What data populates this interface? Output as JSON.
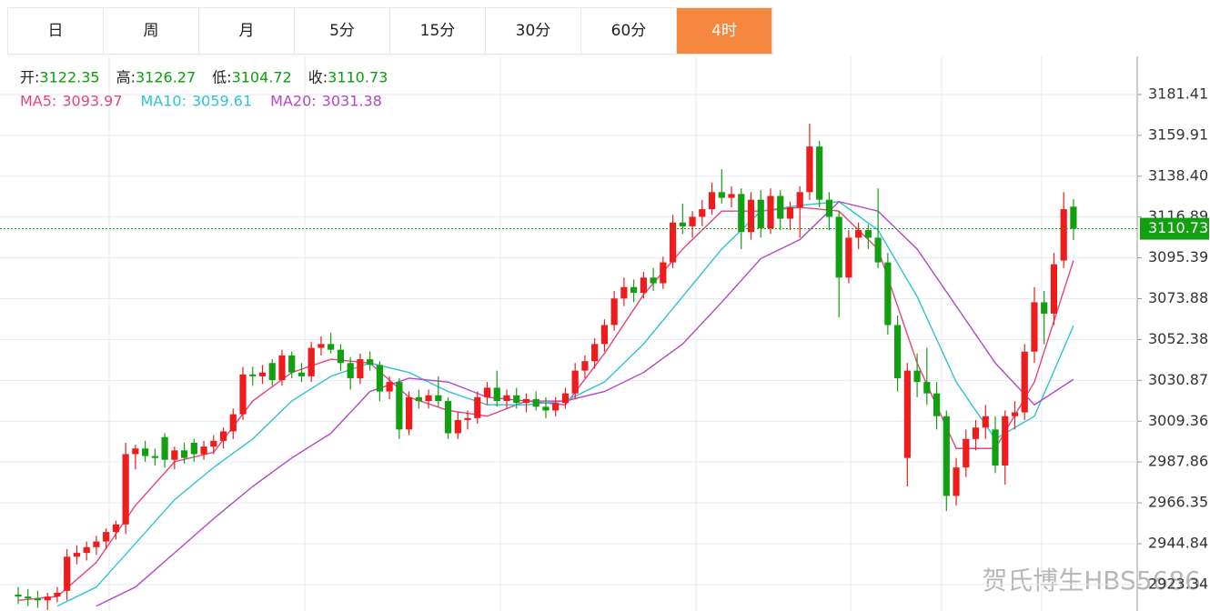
{
  "tabs": [
    "日",
    "周",
    "月",
    "5分",
    "15分",
    "30分",
    "60分",
    "4时"
  ],
  "active_tab": 7,
  "watermark": "贺氏博生HBS5686",
  "chart_data": {
    "type": "candlestick",
    "ohlc_labels": [
      "开:",
      "高:",
      "低:",
      "收:"
    ],
    "up_color": "#ee1c1c",
    "down_color": "#12a012",
    "ylim": [
      2909.4,
      3201.5
    ],
    "yticks": [
      3181.41,
      3159.91,
      {
        "value": 3138.4,
        "label": "3138.40"
      },
      3116.89,
      3095.39,
      3073.88,
      3052.38,
      3030.87,
      3009.36,
      2987.86,
      2966.35,
      2944.84,
      2923.34
    ],
    "grid": true,
    "ohlc": [
      [
        2918,
        2922,
        2913,
        2917
      ],
      [
        2917,
        2921,
        2912,
        2916
      ],
      [
        2916,
        2920,
        2911,
        2915
      ],
      [
        2915,
        2919,
        2910,
        2917
      ],
      [
        2917,
        2922,
        2914,
        2919
      ],
      [
        2920,
        2942,
        2915,
        2938
      ],
      [
        2938,
        2944,
        2934,
        2940
      ],
      [
        2940,
        2946,
        2936,
        2943
      ],
      [
        2943,
        2949,
        2939,
        2946
      ],
      [
        2946,
        2953,
        2942,
        2951
      ],
      [
        2951,
        2957,
        2947,
        2955
      ],
      [
        2955,
        2998,
        2950,
        2992
      ],
      [
        2992,
        2997,
        2984,
        2995
      ],
      [
        2995,
        2999,
        2988,
        2991
      ],
      [
        2991,
        2995,
        2986,
        2990
      ],
      [
        3001,
        3003,
        2985,
        2989
      ],
      [
        2989,
        2996,
        2984,
        2994
      ],
      [
        2994,
        2998,
        2987,
        2990
      ],
      [
        2998,
        3000,
        2988,
        2992
      ],
      [
        2992,
        2999,
        2989,
        2996
      ],
      [
        2996,
        3002,
        2992,
        2999
      ],
      [
        2999,
        3006,
        2995,
        3004
      ],
      [
        3004,
        3016,
        3000,
        3013
      ],
      [
        3013,
        3038,
        3010,
        3034
      ],
      [
        3034,
        3038,
        3028,
        3033
      ],
      [
        3033,
        3039,
        3029,
        3035
      ],
      [
        3040,
        3042,
        3028,
        3031
      ],
      [
        3031,
        3047,
        3028,
        3044
      ],
      [
        3044,
        3046,
        3032,
        3035
      ],
      [
        3035,
        3040,
        3030,
        3033
      ],
      [
        3033,
        3051,
        3030,
        3048
      ],
      [
        3048,
        3054,
        3044,
        3050
      ],
      [
        3050,
        3056,
        3045,
        3047
      ],
      [
        3047,
        3050,
        3036,
        3040
      ],
      [
        3040,
        3043,
        3026,
        3032
      ],
      [
        3032,
        3045,
        3029,
        3042
      ],
      [
        3042,
        3046,
        3036,
        3039
      ],
      [
        3039,
        3041,
        3020,
        3025
      ],
      [
        3025,
        3033,
        3021,
        3030
      ],
      [
        3030,
        3032,
        3000,
        3005
      ],
      [
        3005,
        3025,
        3002,
        3022
      ],
      [
        3022,
        3026,
        3016,
        3020
      ],
      [
        3020,
        3026,
        3016,
        3023
      ],
      [
        3023,
        3033,
        3017,
        3020
      ],
      [
        3020,
        3022,
        3000,
        3003
      ],
      [
        3003,
        3014,
        3000,
        3010
      ],
      [
        3010,
        3015,
        3005,
        3011
      ],
      [
        3011,
        3025,
        3008,
        3022
      ],
      [
        3022,
        3030,
        3018,
        3027
      ],
      [
        3027,
        3036,
        3017,
        3020
      ],
      [
        3020,
        3026,
        3016,
        3023
      ],
      [
        3023,
        3027,
        3016,
        3019
      ],
      [
        3019,
        3024,
        3014,
        3021
      ],
      [
        3021,
        3025,
        3015,
        3017
      ],
      [
        3017,
        3022,
        3011,
        3015
      ],
      [
        3015,
        3022,
        3012,
        3019
      ],
      [
        3019,
        3027,
        3016,
        3024
      ],
      [
        3024,
        3040,
        3021,
        3036
      ],
      [
        3036,
        3044,
        3032,
        3041
      ],
      [
        3041,
        3053,
        3037,
        3050
      ],
      [
        3050,
        3063,
        3046,
        3060
      ],
      [
        3060,
        3078,
        3057,
        3074
      ],
      [
        3074,
        3085,
        3070,
        3080
      ],
      [
        3080,
        3084,
        3072,
        3077
      ],
      [
        3077,
        3088,
        3074,
        3085
      ],
      [
        3085,
        3090,
        3078,
        3082
      ],
      [
        3082,
        3096,
        3079,
        3093
      ],
      [
        3093,
        3118,
        3090,
        3114
      ],
      [
        3114,
        3124,
        3108,
        3112
      ],
      [
        3112,
        3120,
        3106,
        3117
      ],
      [
        3117,
        3126,
        3112,
        3121
      ],
      [
        3121,
        3135,
        3118,
        3130
      ],
      [
        3130,
        3142,
        3124,
        3127
      ],
      [
        3127,
        3133,
        3122,
        3129
      ],
      [
        3129,
        3132,
        3100,
        3109
      ],
      [
        3109,
        3130,
        3105,
        3126
      ],
      [
        3126,
        3131,
        3106,
        3111
      ],
      [
        3111,
        3132,
        3108,
        3128
      ],
      [
        3128,
        3131,
        3110,
        3116
      ],
      [
        3116,
        3125,
        3110,
        3122
      ],
      [
        3122,
        3133,
        3106,
        3130
      ],
      [
        3130,
        3166,
        3126,
        3154
      ],
      [
        3154,
        3157,
        3122,
        3126
      ],
      [
        3126,
        3130,
        3110,
        3117
      ],
      [
        3117,
        3120,
        3064,
        3085
      ],
      [
        3085,
        3110,
        3082,
        3106
      ],
      [
        3106,
        3114,
        3100,
        3110
      ],
      [
        3110,
        3113,
        3100,
        3106
      ],
      [
        3106,
        3132,
        3090,
        3093
      ],
      [
        3093,
        3098,
        3055,
        3060
      ],
      [
        3060,
        3065,
        3025,
        3032
      ],
      [
        2990,
        3040,
        2975,
        3036
      ],
      [
        3036,
        3045,
        3022,
        3030
      ],
      [
        3030,
        3048,
        3018,
        3024
      ],
      [
        3024,
        3030,
        3005,
        3012
      ],
      [
        3012,
        3015,
        2962,
        2970
      ],
      [
        2970,
        2990,
        2965,
        2985
      ],
      [
        2985,
        3005,
        2980,
        3000
      ],
      [
        3000,
        3010,
        2994,
        3006
      ],
      [
        3006,
        3018,
        3000,
        3012
      ],
      [
        3005,
        3012,
        2982,
        2986
      ],
      [
        2986,
        3015,
        2976,
        3012
      ],
      [
        3012,
        3020,
        3005,
        3014
      ],
      [
        3014,
        3050,
        3010,
        3046
      ],
      [
        3046,
        3080,
        3040,
        3072
      ],
      [
        3072,
        3078,
        3050,
        3066
      ],
      [
        3066,
        3098,
        3060,
        3092
      ],
      [
        3094,
        3130,
        3090,
        3121
      ],
      [
        3122.35,
        3126.27,
        3104.72,
        3110.73
      ]
    ],
    "ma_x": [
      0,
      4,
      8,
      12,
      16,
      20,
      24,
      28,
      32,
      36,
      40,
      44,
      48,
      52,
      56,
      60,
      64,
      68,
      72,
      76,
      80,
      84,
      88,
      92,
      96,
      100,
      104,
      108
    ],
    "series": [
      {
        "name": "MA5:",
        "color": "#e8437b",
        "values": [
          2915,
          2917,
          2935,
          2965,
          2988,
          2993,
          3020,
          3035,
          3042,
          3040,
          3022,
          3015,
          3012,
          3020,
          3018,
          3045,
          3076,
          3100,
          3120,
          3120,
          3122,
          3120,
          3100,
          3040,
          2995,
          2995,
          3030,
          3093.97
        ]
      },
      {
        "name": "MA10:",
        "color": "#2fc2d6",
        "values": [
          null,
          2912,
          2922,
          2945,
          2968,
          2985,
          3000,
          3020,
          3033,
          3040,
          3035,
          3025,
          3018,
          3018,
          3020,
          3030,
          3050,
          3075,
          3100,
          3120,
          3123,
          3125,
          3110,
          3075,
          3030,
          3000,
          3012,
          3059.61
        ]
      },
      {
        "name": "MA20:",
        "color": "#b445c8",
        "values": [
          null,
          null,
          2912,
          2922,
          2940,
          2958,
          2975,
          2990,
          3003,
          3025,
          3032,
          3030,
          3022,
          3020,
          3020,
          3025,
          3035,
          3050,
          3072,
          3095,
          3105,
          3125,
          3120,
          3100,
          3070,
          3040,
          3018,
          3031.38
        ]
      }
    ]
  }
}
